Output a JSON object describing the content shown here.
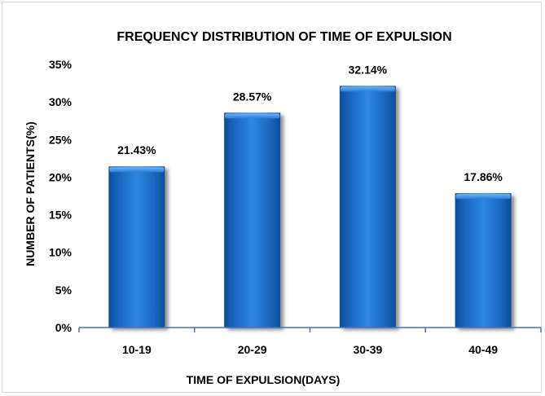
{
  "chart_data": {
    "type": "bar",
    "title": "FREQUENCY DISTRIBUTION OF TIME OF EXPULSION",
    "xlabel": "TIME OF EXPULSION(DAYS)",
    "ylabel": "NUMBER OF PATIENTS(%)",
    "categories": [
      "10-19",
      "20-29",
      "30-39",
      "40-49"
    ],
    "values": [
      21.43,
      28.57,
      32.14,
      17.86
    ],
    "data_labels": [
      "21.43%",
      "28.57%",
      "32.14%",
      "17.86%"
    ],
    "ylim": [
      0,
      35
    ],
    "yticks": [
      0,
      5,
      10,
      15,
      20,
      25,
      30,
      35
    ],
    "ytick_labels": [
      "0%",
      "5%",
      "10%",
      "15%",
      "20%",
      "25%",
      "30%",
      "35%"
    ],
    "grid": false,
    "legend": "none",
    "bar_color": "#1f6fc5"
  }
}
